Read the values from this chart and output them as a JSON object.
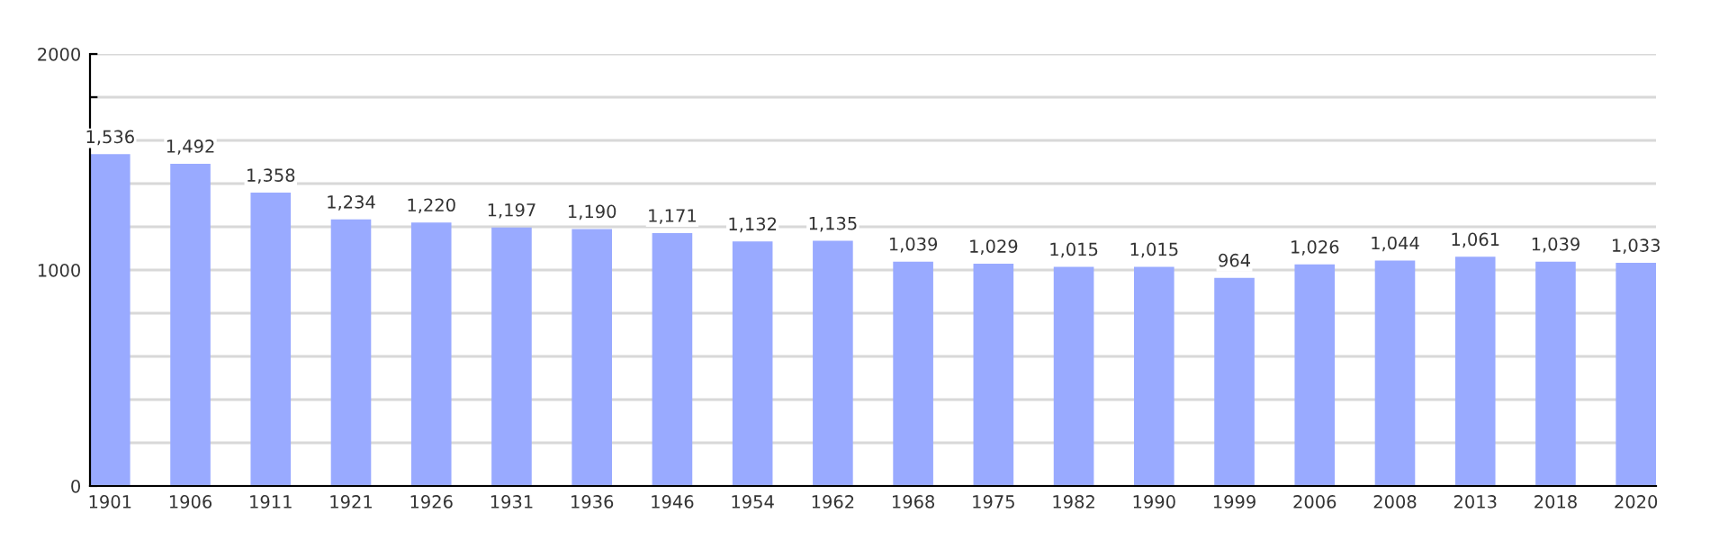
{
  "chart_data": {
    "type": "bar",
    "categories": [
      "1901",
      "1906",
      "1911",
      "1921",
      "1926",
      "1931",
      "1936",
      "1946",
      "1954",
      "1962",
      "1968",
      "1975",
      "1982",
      "1990",
      "1999",
      "2006",
      "2008",
      "2013",
      "2018",
      "2020"
    ],
    "values": [
      1536,
      1492,
      1358,
      1234,
      1220,
      1197,
      1190,
      1171,
      1132,
      1135,
      1039,
      1029,
      1015,
      1015,
      964,
      1026,
      1044,
      1061,
      1039,
      1033
    ],
    "value_labels": [
      "1,536",
      "1,492",
      "1,358",
      "1,234",
      "1,220",
      "1,197",
      "1,190",
      "1,171",
      "1,132",
      "1,135",
      "1,039",
      "1,029",
      "1,015",
      "1,015",
      "964",
      "1,026",
      "1,044",
      "1,061",
      "1,039",
      "1,033"
    ],
    "color": "#99aaff",
    "ylim": [
      0,
      2000
    ],
    "yticks": [
      0,
      {
        "value": 200,
        "label": null
      },
      {
        "value": 400,
        "label": null
      },
      {
        "value": 600,
        "label": null
      },
      {
        "value": 800,
        "label": null
      },
      1000,
      {
        "value": 1200,
        "label": null
      },
      {
        "value": 1400,
        "label": null
      },
      {
        "value": 1600,
        "label": null
      },
      {
        "value": 1800,
        "label": null
      },
      2000
    ],
    "grid": "y"
  }
}
